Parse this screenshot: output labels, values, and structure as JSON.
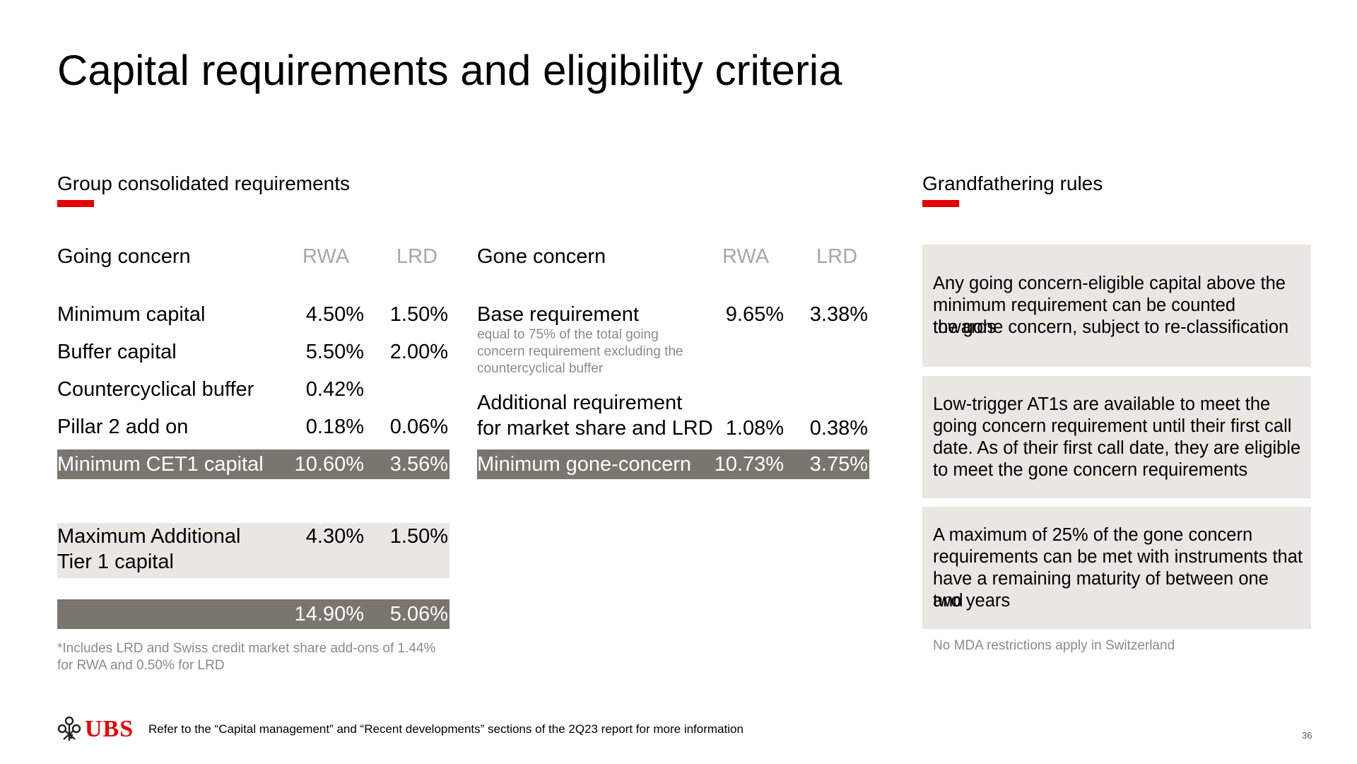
{
  "title": "Capital requirements and eligibility criteria",
  "left_section": {
    "heading": "Group consolidated requirements"
  },
  "right_section": {
    "heading": "Grandfathering rules"
  },
  "going": {
    "header": {
      "label": "Going concern",
      "col1": "RWA",
      "col2": "LRD"
    },
    "rows": [
      {
        "label": "Minimum capital",
        "rwa": "4.50%",
        "lrd": "1.50%"
      },
      {
        "label": "Buffer capital",
        "rwa": "5.50%",
        "lrd": "2.00%"
      },
      {
        "label": "Countercyclical buffer",
        "rwa": "0.42%",
        "lrd": ""
      },
      {
        "label": "Pillar 2 add on",
        "rwa": "0.18%",
        "lrd": "0.06%"
      }
    ],
    "total": {
      "label": "Minimum CET1 capital",
      "rwa": "10.60%",
      "lrd": "3.56%"
    },
    "at1": {
      "label_line1": "Maximum Additional",
      "label_line2": "Tier 1 capital",
      "rwa": "4.30%",
      "lrd": "1.50%"
    },
    "grand_total": {
      "rwa": "14.90%",
      "lrd": "5.06%"
    },
    "footnote_line1": "*Includes LRD and Swiss credit market share add-ons of 1.44%",
    "footnote_line2": "for RWA and 0.50% for LRD"
  },
  "gone": {
    "header": {
      "label": "Gone concern",
      "col1": "RWA",
      "col2": "LRD"
    },
    "base": {
      "label": "Base requirement",
      "rwa": "9.65%",
      "lrd": "3.38%",
      "note_line1": "equal to 75% of the total going",
      "note_line2": "concern requirement excluding the",
      "note_line3": "countercyclical buffer"
    },
    "additional": {
      "label_line1": "Additional requirement",
      "label_line2": "for market share and LRD",
      "rwa": "1.08%",
      "lrd": "0.38%"
    },
    "total": {
      "label": "Minimum gone-concern",
      "rwa": "10.73%",
      "lrd": "3.75%"
    }
  },
  "grandfathering": {
    "boxes": [
      {
        "line1": "Any going concern-eligible capital above the",
        "line2": "minimum requirement can be counted towards",
        "line3": "the gone concern, subject to re-classification",
        "line4": ""
      },
      {
        "line1": "Low-trigger AT1s are available to meet the",
        "line2": "going concern requirement until their first call",
        "line3": "date. As of their first call date, they are eligible",
        "line4": "to meet the gone concern requirements"
      },
      {
        "line1": "A maximum of 25% of the gone concern",
        "line2": "requirements can be met with instruments that",
        "line3": "have a remaining maturity of between one and",
        "line4": "two years"
      }
    ],
    "note": "No MDA restrictions apply in Switzerland"
  },
  "footer": {
    "logo_text": "UBS",
    "reference": "Refer to the “Capital management” and “Recent developments” sections of the 2Q23 report for more information",
    "page_number": "36"
  },
  "colors": {
    "accent": "#e60000",
    "dark_row": "#7a766f",
    "light_row": "#e8e7e2",
    "muted": "#a7a7a7"
  }
}
